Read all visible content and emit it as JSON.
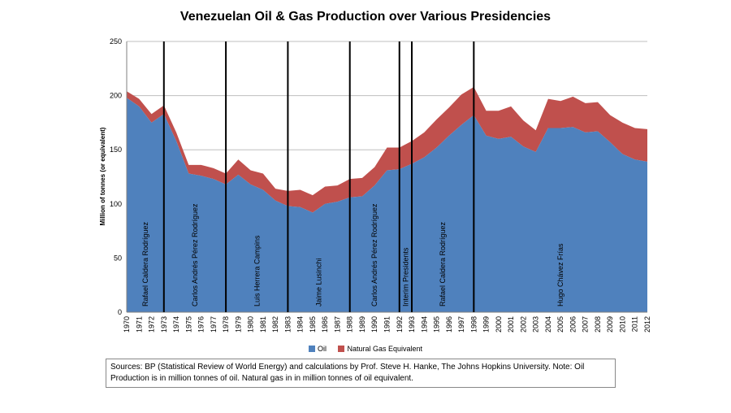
{
  "chart_data": {
    "type": "area",
    "title": "Venezuelan Oil & Gas Production over Various Presidencies",
    "ylabel": "Million of tonnes (or equivalent)",
    "xlabel": "",
    "ylim": [
      0,
      250
    ],
    "yticks": [
      0,
      50,
      100,
      150,
      200,
      250
    ],
    "grid": true,
    "stacked": true,
    "legend_placement": "bottom",
    "x": [
      "1970",
      "1971",
      "1972",
      "1973",
      "1974",
      "1975",
      "1976",
      "1977",
      "1978",
      "1979",
      "1980",
      "1981",
      "1982",
      "1983",
      "1984",
      "1985",
      "1986",
      "1987",
      "1988",
      "1989",
      "1990",
      "1991",
      "1992",
      "1993",
      "1994",
      "1995",
      "1996",
      "1997",
      "1998",
      "1999",
      "2000",
      "2001",
      "2002",
      "2003",
      "2004",
      "2005",
      "2006",
      "2007",
      "2008",
      "2009",
      "2010",
      "2011",
      "2012"
    ],
    "series": [
      {
        "name": "Oil",
        "color": "#4f81bd",
        "values": [
          198,
          190,
          175,
          183,
          158,
          128,
          126,
          123,
          118,
          127,
          118,
          113,
          103,
          98,
          97,
          92,
          100,
          102,
          106,
          107,
          117,
          131,
          132,
          137,
          143,
          152,
          163,
          173,
          182,
          163,
          160,
          162,
          153,
          148,
          170,
          170,
          171,
          166,
          167,
          157,
          146,
          141,
          139
        ]
      },
      {
        "name": "Natural Gas Equivalent",
        "color": "#c0504d",
        "values": [
          6,
          7,
          8,
          8,
          8,
          8,
          10,
          10,
          10,
          14,
          13,
          15,
          11,
          14,
          16,
          16,
          16,
          15,
          17,
          17,
          17,
          21,
          20,
          21,
          23,
          26,
          26,
          28,
          26,
          23,
          26,
          28,
          24,
          20,
          27,
          25,
          28,
          27,
          27,
          25,
          29,
          29,
          30
        ]
      }
    ],
    "presidencies": [
      {
        "name": "Rafael Caldera Rodríguez",
        "start": 1970,
        "end": 1973
      },
      {
        "name": "Carlos Andrés Pérez Rodríguez",
        "start": 1973,
        "end": 1978
      },
      {
        "name": "Luis Herrera Campins",
        "start": 1978,
        "end": 1983
      },
      {
        "name": "Jaime Lusinchi",
        "start": 1983,
        "end": 1988
      },
      {
        "name": "Carlos Andrés Pérez Rodríguez",
        "start": 1988,
        "end": 1992
      },
      {
        "name": "Interim Presidents",
        "start": 1992,
        "end": 1993
      },
      {
        "name": "Rafael Caldera Rodríguez",
        "start": 1993,
        "end": 1998
      },
      {
        "name": "Hugo Chávez Frías",
        "start": 1998,
        "end": 2012
      }
    ],
    "president_lines": [
      1973,
      1978,
      1983,
      1988,
      1992,
      1993,
      1998
    ],
    "source": "Sources: BP (Statistical Review of World Energy) and calculations by Prof. Steve H. Hanke, The Johns Hopkins University. Note:  Oil Production is in million tonnes of oil.  Natural gas in in million tonnes of oil equivalent."
  }
}
